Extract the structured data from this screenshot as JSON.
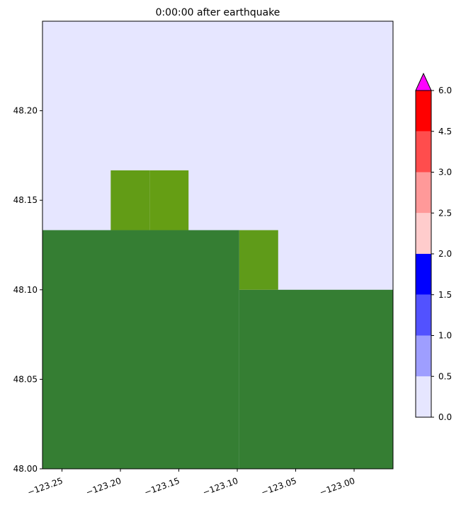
{
  "chart_data": {
    "type": "heatmap",
    "title": "0:00:00 after earthquake",
    "xlabel": "",
    "ylabel": "",
    "xlim": [
      -123.2667,
      -122.9667
    ],
    "ylim": [
      48.0,
      48.25
    ],
    "x_ticks": [
      -123.25,
      -123.2,
      -123.15,
      -123.1,
      -123.05,
      -123.0
    ],
    "x_tick_labels": [
      "−123.25",
      "−123.20",
      "−123.15",
      "−123.10",
      "−123.05",
      "−123.00"
    ],
    "y_ticks": [
      48.0,
      48.05,
      48.1,
      48.15,
      48.2
    ],
    "y_tick_labels": [
      "48.00",
      "48.05",
      "48.10",
      "48.15",
      "48.20"
    ],
    "background_value": "water (0.0–0.5)",
    "cells": [
      {
        "name": "land",
        "x0": -123.2667,
        "x1": -123.0983,
        "y0": 48.0,
        "y1": 48.1333,
        "color": "#357e33"
      },
      {
        "name": "land",
        "x0": -123.0983,
        "x1": -122.9667,
        "y0": 48.0,
        "y1": 48.1,
        "color": "#357e33"
      },
      {
        "name": "land",
        "x0": -123.2083,
        "x1": -123.175,
        "y0": 48.1333,
        "y1": 48.1667,
        "color": "#629c16"
      },
      {
        "name": "land",
        "x0": -123.175,
        "x1": -123.1417,
        "y0": 48.1333,
        "y1": 48.1667,
        "color": "#659e14"
      },
      {
        "name": "land",
        "x0": -123.0983,
        "x1": -123.065,
        "y0": 48.1,
        "y1": 48.1333,
        "color": "#5f9b19"
      }
    ],
    "colorbar": {
      "levels": [
        0.0,
        0.5,
        1.0,
        1.5,
        2.0,
        2.5,
        3.0,
        4.5,
        6.0
      ],
      "tick_labels": [
        "0.0",
        "0.5",
        "1.0",
        "1.5",
        "2.0",
        "2.5",
        "3.0",
        "4.5",
        "6.0"
      ],
      "colors": [
        "#e6e6ff",
        "#9e9eff",
        "#5252ff",
        "#0000ff",
        "#ffcccc",
        "#ff9999",
        "#ff4d4d",
        "#ff0000"
      ],
      "extend_color": "#ff00ff"
    },
    "colors": {
      "water": "#e6e6ff"
    }
  }
}
